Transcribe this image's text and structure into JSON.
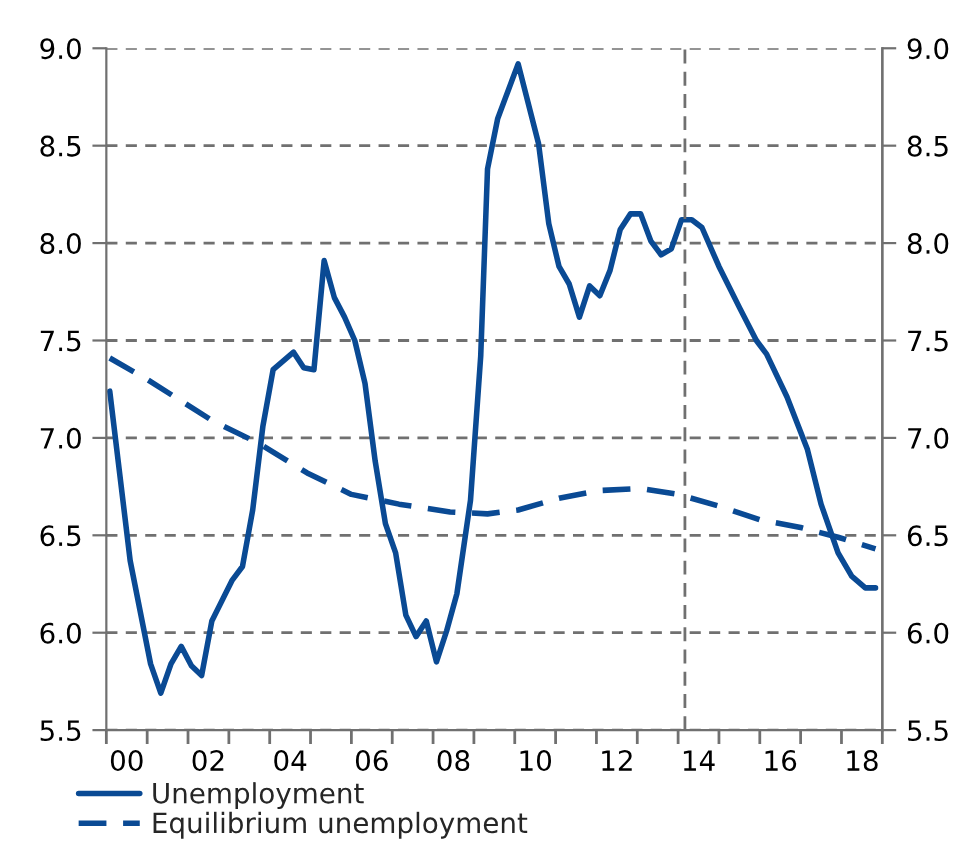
{
  "chart_data": {
    "type": "line",
    "series": [
      {
        "name": "Unemployment",
        "color": "#0a4a94",
        "line_style": "solid",
        "x": [
          "2000-02",
          "2000-08",
          "2001-02",
          "2001-05",
          "2001-08",
          "2001-11",
          "2002-02",
          "2002-05",
          "2002-08",
          "2003-02",
          "2003-05",
          "2003-08",
          "2003-11",
          "2004-02",
          "2004-08",
          "2004-11",
          "2005-02",
          "2005-05",
          "2005-08",
          "2005-11",
          "2006-02",
          "2006-05",
          "2006-08",
          "2006-11",
          "2007-02",
          "2007-05",
          "2007-08",
          "2007-11",
          "2008-02",
          "2008-05",
          "2008-08",
          "2008-12",
          "2009-03",
          "2009-05",
          "2009-08",
          "2010-02",
          "2010-08",
          "2010-11",
          "2011-02",
          "2011-05",
          "2011-08",
          "2011-11",
          "2012-02",
          "2012-05",
          "2012-08",
          "2012-11",
          "2013-02",
          "2013-05",
          "2013-08",
          "2013-11",
          "2014-02",
          "2014-05",
          "2014-08",
          "2015-01",
          "2015-07",
          "2015-12",
          "2016-03",
          "2016-09",
          "2017-03",
          "2017-07",
          "2017-12",
          "2018-04",
          "2018-08",
          "2018-11"
        ],
        "values": [
          7.24,
          6.37,
          5.84,
          5.69,
          5.84,
          5.93,
          5.83,
          5.78,
          6.06,
          6.27,
          6.34,
          6.63,
          7.06,
          7.35,
          7.44,
          7.36,
          7.35,
          7.91,
          7.72,
          7.62,
          7.5,
          7.28,
          6.88,
          6.56,
          6.41,
          6.09,
          5.98,
          6.06,
          5.85,
          6.01,
          6.2,
          6.68,
          7.42,
          8.38,
          8.64,
          8.92,
          8.51,
          8.1,
          7.88,
          7.79,
          7.62,
          7.78,
          7.73,
          7.86,
          8.07,
          8.15,
          8.15,
          8.01,
          7.94,
          7.97,
          8.12,
          8.12,
          8.08,
          7.88,
          7.67,
          7.5,
          7.43,
          7.21,
          6.94,
          6.66,
          6.41,
          6.29,
          6.23,
          6.23
        ]
      },
      {
        "name": "Equilibrium unemployment",
        "color": "#0a4a94",
        "line_style": "dashed",
        "x": [
          "2000-02",
          "2001-01",
          "2002-08",
          "2003-10",
          "2004-12",
          "2006-01",
          "2007-03",
          "2008-06",
          "2009-05",
          "2010-02",
          "2011-02",
          "2012-02",
          "2013-02",
          "2014-01",
          "2015-01",
          "2016-01",
          "2017-01",
          "2017-12",
          "2018-11"
        ],
        "values": [
          7.41,
          7.3,
          7.09,
          6.97,
          6.82,
          6.71,
          6.66,
          6.62,
          6.61,
          6.63,
          6.69,
          6.73,
          6.74,
          6.71,
          6.65,
          6.58,
          6.54,
          6.49,
          6.43
        ]
      }
    ],
    "xlim": [
      "2000-01",
      "2019-01"
    ],
    "xticks": [
      {
        "value": "2000",
        "label": null
      },
      {
        "value": "2001",
        "label": null
      },
      {
        "value": "2002",
        "label": null
      },
      {
        "value": "2003",
        "label": null
      },
      {
        "value": "2004",
        "label": null
      },
      {
        "value": "2005",
        "label": null
      },
      {
        "value": "2006",
        "label": null
      },
      {
        "value": "2007",
        "label": null
      },
      {
        "value": "2008",
        "label": null
      },
      {
        "value": "2009",
        "label": null
      },
      {
        "value": "2010",
        "label": null
      },
      {
        "value": "2011",
        "label": null
      },
      {
        "value": "2012",
        "label": null
      },
      {
        "value": "2013",
        "label": null
      },
      {
        "value": "2014",
        "label": null
      },
      {
        "value": "2015",
        "label": null
      },
      {
        "value": "2016",
        "label": null
      },
      {
        "value": "2017",
        "label": null
      },
      {
        "value": "2018",
        "label": null
      },
      {
        "value": "2019",
        "label": null
      },
      {
        "value": "2000-07",
        "label": "00"
      },
      {
        "value": "2002-07",
        "label": "02"
      },
      {
        "value": "2004-07",
        "label": "04"
      },
      {
        "value": "2006-07",
        "label": "06"
      },
      {
        "value": "2008-07",
        "label": "08"
      },
      {
        "value": "2010-07",
        "label": "10"
      },
      {
        "value": "2012-07",
        "label": "12"
      },
      {
        "value": "2014-07",
        "label": "14"
      },
      {
        "value": "2016-07",
        "label": "16"
      },
      {
        "value": "2018-07",
        "label": "18"
      }
    ],
    "ylim": [
      5.5,
      9.0
    ],
    "yticks": [
      {
        "value": 5.5,
        "label": "5.5"
      },
      {
        "value": 6.0,
        "label": "6.0"
      },
      {
        "value": 6.5,
        "label": "6.5"
      },
      {
        "value": 7.0,
        "label": "7.0"
      },
      {
        "value": 7.5,
        "label": "7.5"
      },
      {
        "value": 8.0,
        "label": "8.0"
      },
      {
        "value": 8.5,
        "label": "8.5"
      },
      {
        "value": 9.0,
        "label": "9.0"
      }
    ],
    "y2lim": [
      5.5,
      9.0
    ],
    "y2ticks": [
      {
        "value": 5.5,
        "label": "5.5"
      },
      {
        "value": 6.0,
        "label": "6.0"
      },
      {
        "value": 6.5,
        "label": "6.5"
      },
      {
        "value": 7.0,
        "label": "7.0"
      },
      {
        "value": 7.5,
        "label": "7.5"
      },
      {
        "value": 8.0,
        "label": "8.0"
      },
      {
        "value": 8.5,
        "label": "8.5"
      },
      {
        "value": 9.0,
        "label": "9.0"
      }
    ],
    "ref_lines": [
      {
        "axis": "x",
        "value": "2014-03",
        "color": "#707070",
        "line_style": "dashed"
      }
    ],
    "grid": "y",
    "legend": "bottom",
    "marker": "none"
  }
}
